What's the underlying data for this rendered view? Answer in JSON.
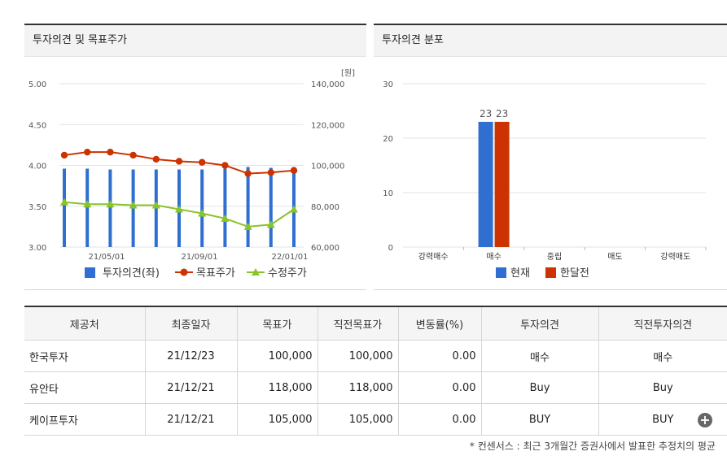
{
  "left_panel": {
    "title": "투자의견 및 목표주가"
  },
  "right_panel": {
    "title": "투자의견 분포"
  },
  "chart_data": [
    {
      "type": "bar+line",
      "title": "투자의견 및 목표주가",
      "y_left": {
        "min": 3.0,
        "max": 5.0,
        "ticks": [
          "5.00",
          "4.50",
          "4.00",
          "3.50",
          "3.00"
        ]
      },
      "y_right": {
        "min": 60000,
        "max": 140000,
        "unit": "[원]",
        "ticks": [
          "140,000",
          "120,000",
          "100,000",
          "80,000",
          "60,000"
        ]
      },
      "x_ticks": [
        "21/05/01",
        "21/09/01",
        "22/01/01"
      ],
      "series": [
        {
          "name": "투자의견(좌)",
          "type": "bar",
          "color": "#2e6fd0",
          "values": [
            3.96,
            3.96,
            3.95,
            3.95,
            3.95,
            3.95,
            3.95,
            3.96,
            3.98,
            3.97,
            3.98
          ]
        },
        {
          "name": "목표주가",
          "type": "line",
          "color": "#cc3300",
          "values": [
            105000,
            106500,
            106500,
            105000,
            103000,
            102000,
            101500,
            100000,
            96000,
            96500,
            97500
          ]
        },
        {
          "name": "수정주가",
          "type": "line",
          "color": "#88c428",
          "values": [
            82000,
            81000,
            81000,
            80500,
            80500,
            78500,
            76500,
            74000,
            70000,
            71000,
            78500
          ]
        }
      ]
    },
    {
      "type": "bar",
      "title": "투자의견 분포",
      "categories": [
        "강력매수",
        "매수",
        "중립",
        "매도",
        "강력매도"
      ],
      "ylim": [
        0,
        30
      ],
      "yticks": [
        "30",
        "20",
        "10",
        "0"
      ],
      "series": [
        {
          "name": "현재",
          "color": "#2e6fd0",
          "values": [
            0,
            23,
            0,
            0,
            0
          ]
        },
        {
          "name": "한달전",
          "color": "#cc3300",
          "values": [
            0,
            23,
            0,
            0,
            0
          ]
        }
      ]
    }
  ],
  "table": {
    "headers": [
      "제공처",
      "최종일자",
      "목표가",
      "직전목표가",
      "변동률(%)",
      "투자의견",
      "직전투자의견"
    ],
    "rows": [
      [
        "한국투자",
        "21/12/23",
        "100,000",
        "100,000",
        "0.00",
        "매수",
        "매수"
      ],
      [
        "유안타",
        "21/12/21",
        "118,000",
        "118,000",
        "0.00",
        "Buy",
        "Buy"
      ],
      [
        "케이프투자",
        "21/12/21",
        "105,000",
        "105,000",
        "0.00",
        "BUY",
        "BUY"
      ]
    ]
  },
  "more_icon": "plus-circle-icon",
  "footnote": "* 컨센서스 : 최근 3개월간 증권사에서 발표한 추정치의 평균"
}
